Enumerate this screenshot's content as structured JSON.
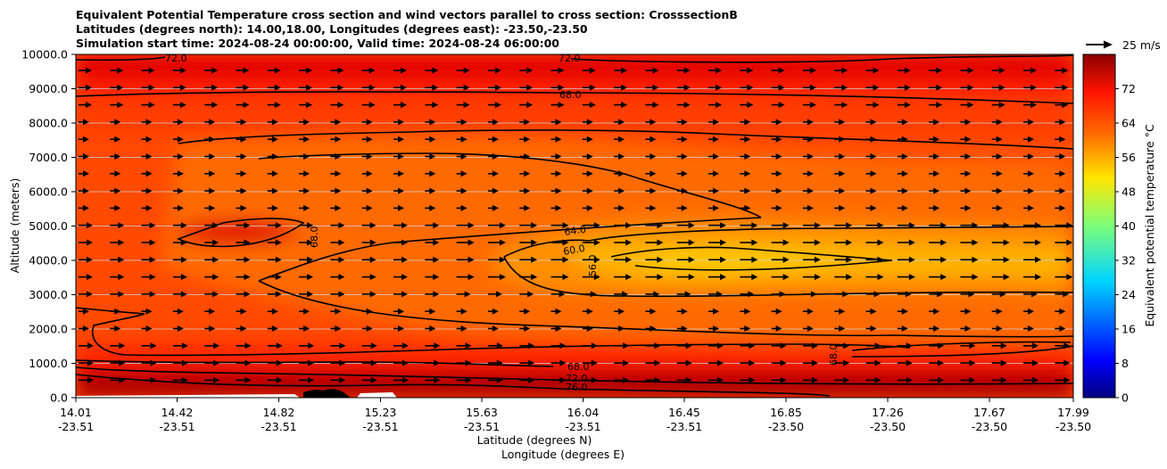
{
  "chart_data": {
    "type": "heatmap",
    "title_lines": [
      "Equivalent Potential Temperature cross section and wind vectors parallel to cross section: CrosssectionB",
      "Latitudes (degrees north): 14.00,18.00, Longitudes (degrees east): -23.50,-23.50",
      "Simulation start time: 2024-08-24 00:00:00, Valid time: 2024-08-24 06:00:00"
    ],
    "ylabel": "Altitude (meters)",
    "xlabel_lat": "Latitude (degrees N)",
    "xlabel_lon": "Longitude (degrees E)",
    "ylim": [
      0,
      10000
    ],
    "y_ticks": [
      "0.0",
      "1000.0",
      "2000.0",
      "3000.0",
      "4000.0",
      "5000.0",
      "6000.0",
      "7000.0",
      "8000.0",
      "9000.0",
      "10000.0"
    ],
    "x_ticks_lat": [
      "14.01",
      "14.42",
      "14.82",
      "15.23",
      "15.63",
      "16.04",
      "16.45",
      "16.85",
      "17.26",
      "17.67",
      "17.99"
    ],
    "x_ticks_lon": [
      "-23.51",
      "-23.51",
      "-23.51",
      "-23.51",
      "-23.51",
      "-23.51",
      "-23.51",
      "-23.50",
      "-23.50",
      "-23.50",
      "-23.50"
    ],
    "grid": "horizontal",
    "colorbar": {
      "label": "Equivalent potential temperature $^\\circ$C",
      "ticks": [
        "0",
        "8",
        "16",
        "24",
        "32",
        "40",
        "48",
        "56",
        "64",
        "72"
      ],
      "range": [
        0,
        80
      ],
      "colormap": "jet"
    },
    "quiver_key": "25 m/s",
    "contour_labels": [
      "72.0",
      "72.0",
      "68.0",
      "68.0",
      "64.0",
      "60.0",
      "56.0",
      "68.0",
      "68.0",
      "72.0",
      "76.0"
    ]
  }
}
